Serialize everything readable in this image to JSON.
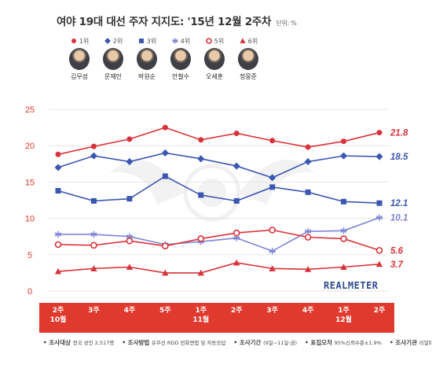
{
  "title": "여야 19대 대선 주자 지지도: '15년 12월 2주차",
  "unit": "단위: %",
  "brand": "REALMETER",
  "legend": [
    {
      "rank": "1위",
      "name": "김무성",
      "color": "#d9323a",
      "marker": "circle"
    },
    {
      "rank": "2위",
      "name": "문재인",
      "color": "#3b57b1",
      "marker": "diamond"
    },
    {
      "rank": "3위",
      "name": "박원순",
      "color": "#3b57b1",
      "marker": "square"
    },
    {
      "rank": "4위",
      "name": "안철수",
      "color": "#7e86d2",
      "marker": "asterisk"
    },
    {
      "rank": "5위",
      "name": "오세훈",
      "color": "#d9323a",
      "marker": "open-circle"
    },
    {
      "rank": "6위",
      "name": "정몽준",
      "color": "#d9323a",
      "marker": "triangle"
    }
  ],
  "chart_data": {
    "type": "line",
    "categories": [
      "2주\n10월",
      "3주",
      "4주",
      "5주",
      "1주\n11월",
      "2주",
      "3주",
      "4주",
      "1주\n12월",
      "2주"
    ],
    "ylim": [
      0,
      25
    ],
    "yticks": [
      0,
      5,
      10,
      15,
      20,
      25
    ],
    "series": [
      {
        "name": "김무성",
        "color": "#d9323a",
        "marker": "circle",
        "values": [
          18.8,
          19.9,
          20.9,
          22.5,
          20.8,
          21.7,
          20.7,
          19.8,
          20.6,
          21.8
        ],
        "end_label": "21.8"
      },
      {
        "name": "문재인",
        "color": "#3b57b1",
        "marker": "diamond",
        "values": [
          17.0,
          18.6,
          17.8,
          19.0,
          18.2,
          17.2,
          15.6,
          17.8,
          18.6,
          18.5
        ],
        "end_label": "18.5"
      },
      {
        "name": "박원순",
        "color": "#3b57b1",
        "marker": "square",
        "values": [
          13.8,
          12.4,
          12.7,
          15.8,
          13.2,
          12.4,
          14.3,
          13.6,
          12.3,
          12.1
        ],
        "end_label": "12.1"
      },
      {
        "name": "안철수",
        "color": "#7e86d2",
        "marker": "asterisk",
        "values": [
          7.8,
          7.8,
          7.5,
          6.4,
          6.8,
          7.3,
          5.5,
          8.2,
          8.3,
          10.1
        ],
        "end_label": "10.1"
      },
      {
        "name": "오세훈",
        "color": "#d9323a",
        "marker": "open-circle",
        "values": [
          6.4,
          6.3,
          6.9,
          6.2,
          7.2,
          8.0,
          8.4,
          7.4,
          7.2,
          5.6
        ],
        "end_label": "5.6"
      },
      {
        "name": "정몽준",
        "color": "#d9323a",
        "marker": "triangle",
        "values": [
          2.7,
          3.1,
          3.3,
          2.5,
          2.5,
          3.9,
          3.1,
          3.0,
          3.3,
          3.7
        ],
        "end_label": "3.7"
      }
    ]
  },
  "footnote": [
    {
      "label": "조사대상",
      "text": "전국 성인 2,517명"
    },
    {
      "label": "조사방법",
      "text": "유무선 RDD 전화면접 및 자동응답"
    },
    {
      "label": "조사기간",
      "text": "(9일~11일·금)"
    },
    {
      "label": "표집오차",
      "text": "95%신뢰수준±1.9%"
    },
    {
      "label": "조사기관",
      "text": "리얼미터"
    }
  ]
}
